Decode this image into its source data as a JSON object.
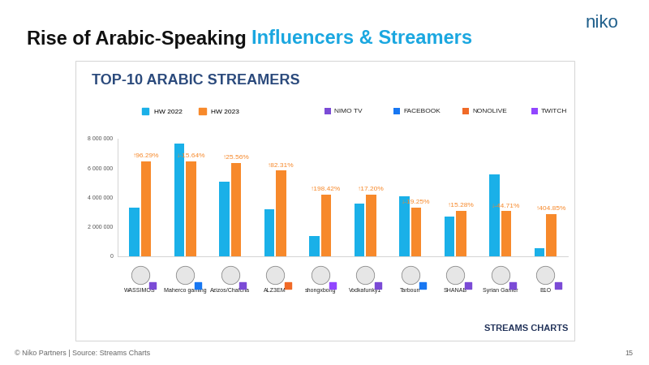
{
  "slide": {
    "title": "Rise of Arabic-Speaking Influencers & Streamers",
    "title_highlight": "Influencers & Streamers",
    "logo": "niko",
    "footer": "© Niko Partners | Source: Streams Charts",
    "page": 15,
    "source_logo": "STREAMS CHARTS"
  },
  "chart_data": {
    "type": "bar",
    "title": "TOP-10 ARABIC STREAMERS",
    "categories": [
      "WASSIMOS",
      "Maherco gaming",
      "Azizos/Chafcha",
      "ALZ3EM",
      "shongxbong",
      "Vodkafunky1",
      "Tarboun",
      "SHANAB",
      "Syrian Gamer",
      "B1O"
    ],
    "series": [
      {
        "name": "HW 2022",
        "color": "#1ab0e8",
        "values": [
          3300000,
          7650000,
          5050000,
          3200000,
          1400000,
          3600000,
          4100000,
          2700000,
          5550000,
          570000
        ]
      },
      {
        "name": "HW 2023",
        "color": "#f7892b",
        "values": [
          6480000,
          6450000,
          6340000,
          5830000,
          4180000,
          4220000,
          3310000,
          3110000,
          3070000,
          2880000
        ]
      }
    ],
    "annotations": [
      "↑96.29%",
      "↓-15.64%",
      "↑25.56%",
      "↑82.31%",
      "↑198.42%",
      "↑17.20%",
      "↓-19.25%",
      "↑15.28%",
      "↓-44.71%",
      "↑404.85%"
    ],
    "platforms": [
      {
        "name": "NIMO TV",
        "color": "#7b4bd6"
      },
      {
        "name": "FACEBOOK",
        "color": "#1877f2"
      },
      {
        "name": "NONOLIVE",
        "color": "#f06a27"
      },
      {
        "name": "TWITCH",
        "color": "#9146ff"
      }
    ],
    "category_platforms": [
      "NIMO TV",
      "FACEBOOK",
      "NIMO TV",
      "NONOLIVE",
      "TWITCH",
      "NIMO TV",
      "FACEBOOK",
      "NIMO TV",
      "NIMO TV",
      "NIMO TV"
    ],
    "ylim": [
      0,
      8000000
    ],
    "yticks": [
      0,
      {
        "value": 2000000,
        "label": "2 000 000"
      },
      {
        "value": 4000000,
        "label": "4 000 000"
      },
      {
        "value": 6000000,
        "label": "6 000 000"
      },
      {
        "value": 8000000,
        "label": "8 000 000"
      }
    ],
    "grid": false
  }
}
